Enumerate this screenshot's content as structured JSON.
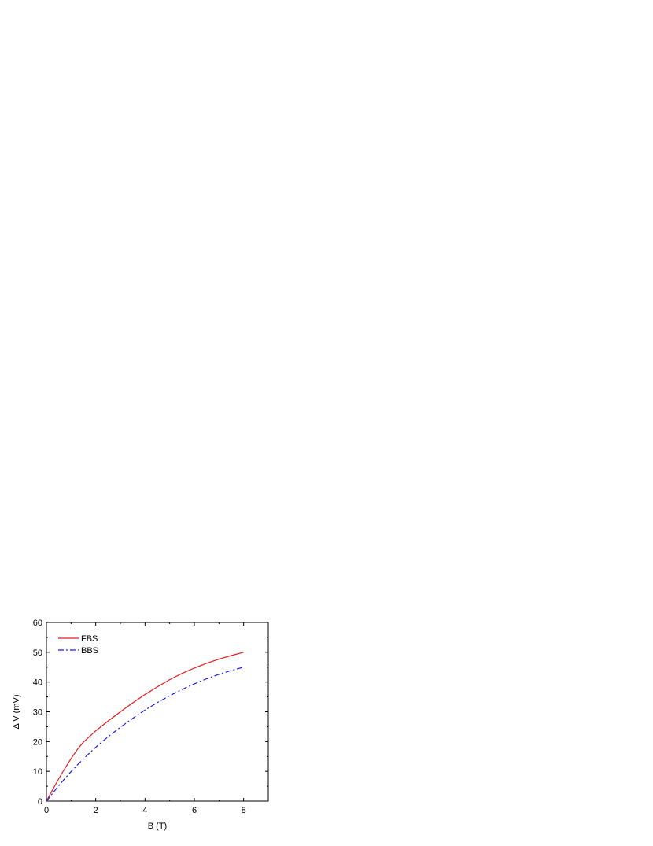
{
  "chart_data": {
    "type": "line",
    "title": "",
    "xlabel": "B (T)",
    "ylabel": "Δ V (mV)",
    "xlim": [
      0,
      9
    ],
    "ylim": [
      0,
      60
    ],
    "xticks": [
      "0",
      "2",
      "4",
      "6",
      "8"
    ],
    "yticks": [
      "0",
      "10",
      "20",
      "30",
      "40",
      "50",
      "60"
    ],
    "grid": false,
    "legend_position": "top-left",
    "series": [
      {
        "name": "FBS",
        "color": "#e8191e",
        "style": "solid",
        "x": [
          0,
          0.25,
          0.5,
          0.75,
          1,
          1.25,
          1.5,
          2,
          2.5,
          3,
          3.5,
          4,
          4.5,
          5,
          5.5,
          6,
          6.5,
          7,
          7.5,
          8
        ],
        "y": [
          0,
          3.8,
          7.5,
          11.0,
          14.3,
          17.3,
          19.8,
          23.6,
          26.9,
          30.0,
          33.0,
          35.8,
          38.4,
          40.8,
          42.9,
          44.7,
          46.3,
          47.7,
          48.9,
          50.0
        ]
      },
      {
        "name": "BBS",
        "color": "#1a1ae6",
        "style": "dash-dot",
        "x": [
          0,
          0.25,
          0.5,
          0.75,
          1,
          1.25,
          1.5,
          2,
          2.5,
          3,
          3.5,
          4,
          4.5,
          5,
          5.5,
          6,
          6.5,
          7,
          7.5,
          8
        ],
        "y": [
          0,
          2.6,
          5.2,
          7.6,
          9.9,
          12.1,
          14.2,
          18.1,
          21.6,
          24.8,
          27.8,
          30.6,
          33.1,
          35.4,
          37.5,
          39.4,
          41.1,
          42.6,
          43.9,
          45.0
        ]
      }
    ]
  }
}
